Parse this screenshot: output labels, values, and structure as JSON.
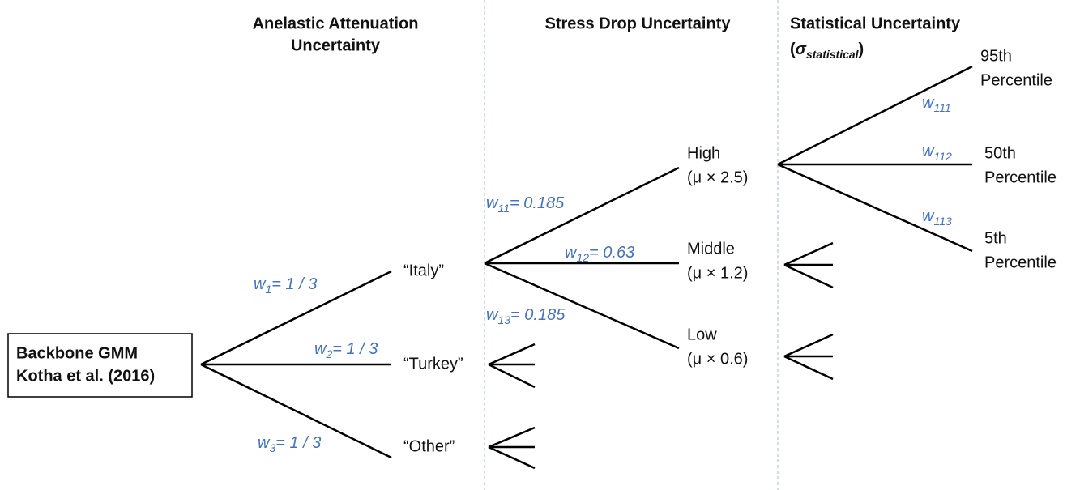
{
  "columns": [
    {
      "title": [
        "Anelastic Attenuation",
        "Uncertainty"
      ]
    },
    {
      "title": [
        "Stress Drop Uncertainty"
      ]
    },
    {
      "title": [
        "Statistical Uncertainty"
      ],
      "symbol": {
        "open": "(",
        "symbol": "σ",
        "subscript": "statistical",
        "close": ")"
      }
    }
  ],
  "root": {
    "label": [
      "Backbone GMM",
      "Kotha et al. (2016)"
    ]
  },
  "level1": [
    {
      "label": "“Italy”",
      "weight": {
        "symbol": "w",
        "subscript": "1",
        "value": "= 1 / 3"
      }
    },
    {
      "label": "“Turkey”",
      "weight": {
        "symbol": "w",
        "subscript": "2",
        "value": "= 1 / 3"
      }
    },
    {
      "label": "“Other”",
      "weight": {
        "symbol": "w",
        "subscript": "3",
        "value": "= 1 / 3"
      }
    }
  ],
  "level2": [
    {
      "label": [
        "High",
        "(μ × 2.5)"
      ],
      "weight": {
        "symbol": "w",
        "subscript": "11",
        "value": "= 0.185"
      }
    },
    {
      "label": [
        "Middle",
        "(μ × 1.2)"
      ],
      "weight": {
        "symbol": "w",
        "subscript": "12",
        "value": "= 0.63"
      }
    },
    {
      "label": [
        "Low",
        "(μ × 0.6)"
      ],
      "weight": {
        "symbol": "w",
        "subscript": "13",
        "value": "= 0.185"
      }
    }
  ],
  "level3": [
    {
      "label": [
        "95th",
        "Percentile"
      ],
      "weight": {
        "symbol": "w",
        "subscript": "111"
      }
    },
    {
      "label": [
        "50th",
        "Percentile"
      ],
      "weight": {
        "symbol": "w",
        "subscript": "112"
      }
    },
    {
      "label": [
        "5th",
        "Percentile"
      ],
      "weight": {
        "symbol": "w",
        "subscript": "113"
      }
    }
  ]
}
